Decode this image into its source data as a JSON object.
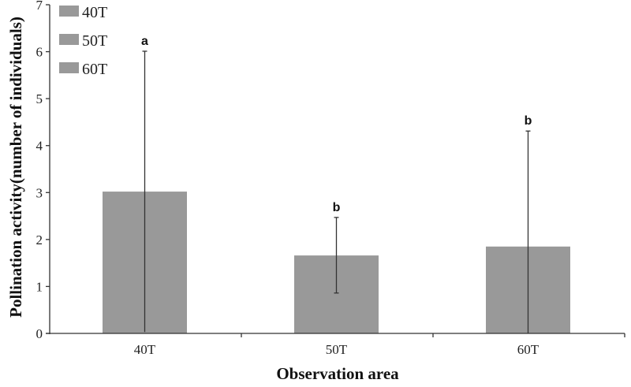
{
  "chart_data": {
    "type": "bar",
    "title": "",
    "xlabel": "Observation area",
    "ylabel": "Pollination activity(number of individuals)",
    "categories": [
      "40T",
      "50T",
      "60T"
    ],
    "values": [
      3.02,
      1.66,
      1.85
    ],
    "error_upper": [
      6.01,
      2.47,
      4.31
    ],
    "error_lower": [
      0.03,
      0.86,
      0.0
    ],
    "significance_labels": [
      "a",
      "b",
      "b"
    ],
    "ylim": [
      0,
      7
    ],
    "yticks": [
      0,
      1,
      2,
      3,
      4,
      5,
      6,
      7
    ],
    "legend": {
      "position": "upper-left",
      "entries": [
        "40T",
        "50T",
        "60T"
      ]
    },
    "grid": false,
    "bar_color": "#999999"
  }
}
